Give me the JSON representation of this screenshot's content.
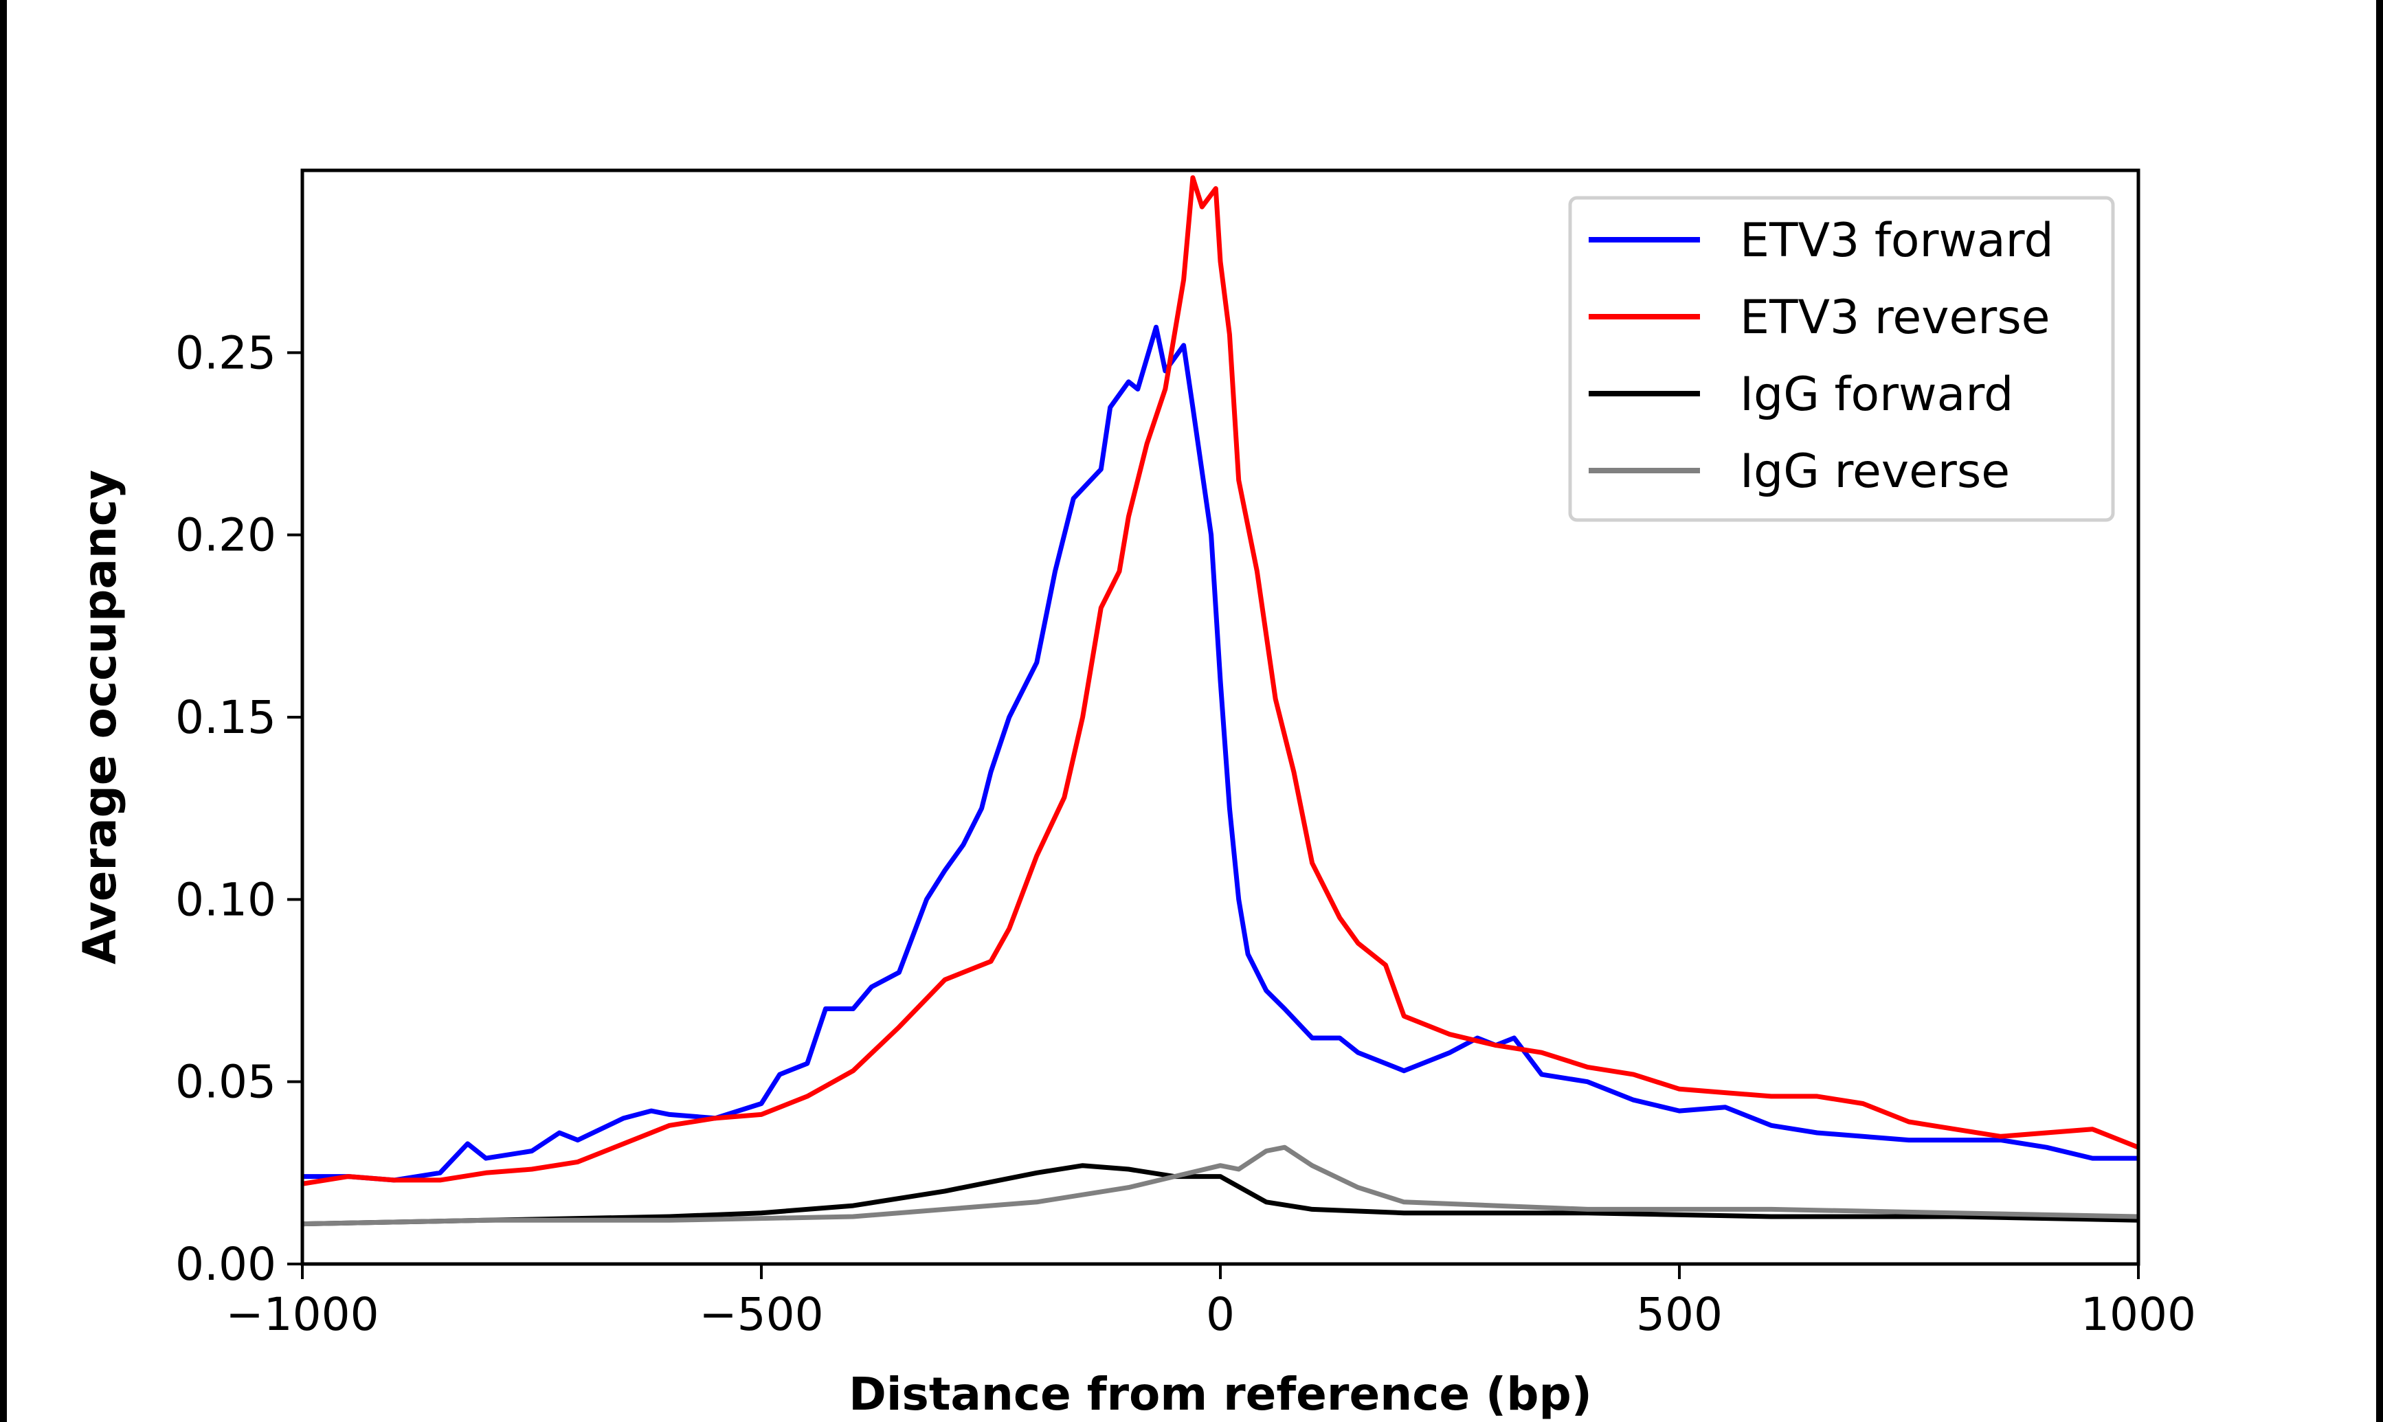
{
  "chart_data": {
    "type": "line",
    "title": "",
    "xlabel": "Distance from reference (bp)",
    "ylabel": "Average occupancy",
    "xlim": [
      -1000,
      1000
    ],
    "ylim": [
      0,
      0.3
    ],
    "xticks": [
      -1000,
      -500,
      0,
      500,
      1000
    ],
    "xtick_labels": [
      "−1000",
      "−500",
      "0",
      "500",
      "1000"
    ],
    "yticks": [
      0,
      0.05,
      0.1,
      0.15,
      0.2,
      0.25
    ],
    "ytick_labels": [
      "0.00",
      "0.05",
      "0.10",
      "0.15",
      "0.20",
      "0.25"
    ],
    "grid": false,
    "legend_position": "top-right",
    "series": [
      {
        "name": "ETV3 forward",
        "color": "#0000ff",
        "x": [
          -1000,
          -950,
          -900,
          -850,
          -820,
          -800,
          -750,
          -720,
          -700,
          -650,
          -620,
          -600,
          -550,
          -500,
          -480,
          -450,
          -430,
          -400,
          -380,
          -350,
          -320,
          -300,
          -280,
          -260,
          -250,
          -230,
          -200,
          -180,
          -160,
          -130,
          -120,
          -100,
          -90,
          -70,
          -60,
          -40,
          -30,
          -10,
          0,
          10,
          20,
          30,
          50,
          70,
          100,
          130,
          150,
          200,
          250,
          280,
          300,
          320,
          350,
          400,
          450,
          500,
          550,
          600,
          650,
          700,
          750,
          800,
          850,
          900,
          950,
          1000
        ],
        "y": [
          0.024,
          0.024,
          0.023,
          0.025,
          0.033,
          0.029,
          0.031,
          0.036,
          0.034,
          0.04,
          0.042,
          0.041,
          0.04,
          0.044,
          0.052,
          0.055,
          0.07,
          0.07,
          0.076,
          0.08,
          0.1,
          0.108,
          0.115,
          0.125,
          0.135,
          0.15,
          0.165,
          0.19,
          0.21,
          0.218,
          0.235,
          0.242,
          0.24,
          0.257,
          0.245,
          0.252,
          0.235,
          0.2,
          0.16,
          0.125,
          0.1,
          0.085,
          0.075,
          0.07,
          0.062,
          0.062,
          0.058,
          0.053,
          0.058,
          0.062,
          0.06,
          0.062,
          0.052,
          0.05,
          0.045,
          0.042,
          0.043,
          0.038,
          0.036,
          0.035,
          0.034,
          0.034,
          0.034,
          0.032,
          0.029,
          0.029
        ]
      },
      {
        "name": "ETV3 reverse",
        "color": "#ff0000",
        "x": [
          -1000,
          -950,
          -900,
          -850,
          -800,
          -750,
          -700,
          -650,
          -600,
          -550,
          -500,
          -450,
          -400,
          -350,
          -300,
          -250,
          -230,
          -200,
          -170,
          -150,
          -130,
          -110,
          -100,
          -80,
          -60,
          -50,
          -40,
          -30,
          -20,
          -5,
          0,
          10,
          20,
          40,
          60,
          80,
          100,
          130,
          150,
          180,
          200,
          250,
          300,
          350,
          400,
          450,
          500,
          550,
          600,
          650,
          700,
          750,
          800,
          850,
          900,
          950,
          1000
        ],
        "y": [
          0.022,
          0.024,
          0.023,
          0.023,
          0.025,
          0.026,
          0.028,
          0.033,
          0.038,
          0.04,
          0.041,
          0.046,
          0.053,
          0.065,
          0.078,
          0.083,
          0.092,
          0.112,
          0.128,
          0.15,
          0.18,
          0.19,
          0.205,
          0.225,
          0.24,
          0.255,
          0.27,
          0.298,
          0.29,
          0.295,
          0.275,
          0.255,
          0.215,
          0.19,
          0.155,
          0.135,
          0.11,
          0.095,
          0.088,
          0.082,
          0.068,
          0.063,
          0.06,
          0.058,
          0.054,
          0.052,
          0.048,
          0.047,
          0.046,
          0.046,
          0.044,
          0.039,
          0.037,
          0.035,
          0.036,
          0.037,
          0.032
        ]
      },
      {
        "name": "IgG forward",
        "color": "#000000",
        "x": [
          -1000,
          -800,
          -600,
          -500,
          -400,
          -300,
          -200,
          -150,
          -100,
          -50,
          0,
          50,
          100,
          200,
          300,
          400,
          600,
          800,
          1000
        ],
        "y": [
          0.011,
          0.012,
          0.013,
          0.014,
          0.016,
          0.02,
          0.025,
          0.027,
          0.026,
          0.024,
          0.024,
          0.017,
          0.015,
          0.014,
          0.014,
          0.014,
          0.013,
          0.013,
          0.012
        ]
      },
      {
        "name": "IgG reverse",
        "color": "#808080",
        "x": [
          -1000,
          -800,
          -600,
          -400,
          -300,
          -200,
          -100,
          -50,
          0,
          20,
          50,
          70,
          100,
          150,
          200,
          300,
          400,
          600,
          800,
          1000
        ],
        "y": [
          0.011,
          0.012,
          0.012,
          0.013,
          0.015,
          0.017,
          0.021,
          0.024,
          0.027,
          0.026,
          0.031,
          0.032,
          0.027,
          0.021,
          0.017,
          0.016,
          0.015,
          0.015,
          0.014,
          0.013
        ]
      }
    ]
  }
}
